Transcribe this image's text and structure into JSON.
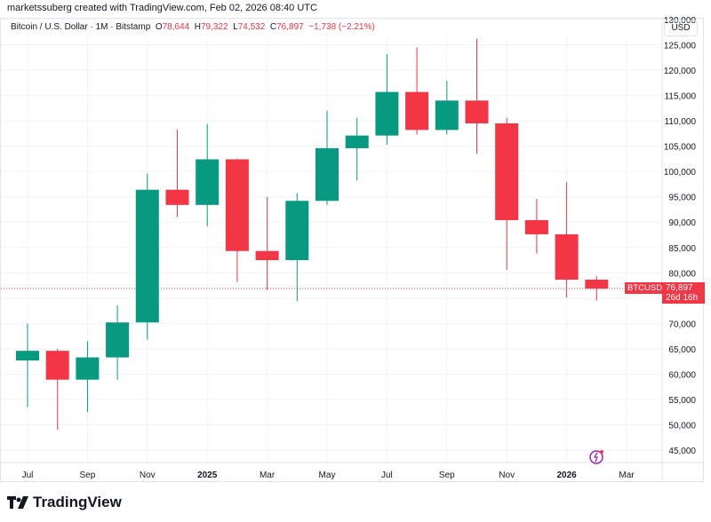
{
  "header": {
    "credit": "marketssuberg created with TradingView.com, Feb 02, 2026 08:40 UTC"
  },
  "legend": {
    "symbol": "Bitcoin / U.S. Dollar · 1M · Bitstamp",
    "o_label": "O",
    "o": "78,644",
    "h_label": "H",
    "h": "79,322",
    "l_label": "L",
    "l": "74,532",
    "c_label": "C",
    "c": "76,897",
    "change": "−1,738 (−2.21%)"
  },
  "currency": "USD",
  "price_tag": {
    "symbol": "BTCUSD",
    "price": "76,897",
    "countdown": "26d 16h"
  },
  "brand": "TradingView",
  "colors": {
    "up": "#089981",
    "down": "#f23645"
  },
  "chart_data": {
    "type": "candlestick",
    "title": "Bitcoin / U.S. Dollar · 1M · Bitstamp",
    "ylim": [
      45000,
      130000
    ],
    "y_ticks": [
      "130,000",
      "125,000",
      "120,000",
      "115,000",
      "110,000",
      "105,000",
      "100,000",
      "95,000",
      "90,000",
      "85,000",
      "80,000",
      "75,000",
      "70,000",
      "65,000",
      "60,000",
      "55,000",
      "50,000",
      "45,000"
    ],
    "x_ticks": [
      {
        "label": "Jul",
        "i": 0
      },
      {
        "label": "Sep",
        "i": 2
      },
      {
        "label": "Nov",
        "i": 4
      },
      {
        "label": "2025",
        "i": 6,
        "bold": true
      },
      {
        "label": "Mar",
        "i": 8
      },
      {
        "label": "May",
        "i": 10
      },
      {
        "label": "Jul",
        "i": 12
      },
      {
        "label": "Sep",
        "i": 14
      },
      {
        "label": "Nov",
        "i": 16
      },
      {
        "label": "2026",
        "i": 18,
        "bold": true
      },
      {
        "label": "Mar",
        "i": 20
      }
    ],
    "candles": [
      {
        "m": "2024-07",
        "o": 62700,
        "h": 70000,
        "l": 53500,
        "c": 64600
      },
      {
        "m": "2024-08",
        "o": 64600,
        "h": 65000,
        "l": 49000,
        "c": 58900
      },
      {
        "m": "2024-09",
        "o": 58900,
        "h": 66500,
        "l": 52500,
        "c": 63300
      },
      {
        "m": "2024-10",
        "o": 63300,
        "h": 73600,
        "l": 58900,
        "c": 70200
      },
      {
        "m": "2024-11",
        "o": 70200,
        "h": 99600,
        "l": 66800,
        "c": 96400
      },
      {
        "m": "2024-12",
        "o": 96400,
        "h": 108300,
        "l": 91000,
        "c": 93400
      },
      {
        "m": "2025-01",
        "o": 93400,
        "h": 109400,
        "l": 89200,
        "c": 102400
      },
      {
        "m": "2025-02",
        "o": 102400,
        "h": 102500,
        "l": 78200,
        "c": 84300
      },
      {
        "m": "2025-03",
        "o": 84300,
        "h": 95000,
        "l": 76600,
        "c": 82500
      },
      {
        "m": "2025-04",
        "o": 82500,
        "h": 95700,
        "l": 74400,
        "c": 94200
      },
      {
        "m": "2025-05",
        "o": 94200,
        "h": 112000,
        "l": 93400,
        "c": 104600
      },
      {
        "m": "2025-06",
        "o": 104600,
        "h": 110600,
        "l": 98200,
        "c": 107100
      },
      {
        "m": "2025-07",
        "o": 107100,
        "h": 123200,
        "l": 105300,
        "c": 115700
      },
      {
        "m": "2025-08",
        "o": 115700,
        "h": 124500,
        "l": 107300,
        "c": 108200
      },
      {
        "m": "2025-09",
        "o": 108200,
        "h": 117900,
        "l": 107300,
        "c": 114000
      },
      {
        "m": "2025-10",
        "o": 114000,
        "h": 126200,
        "l": 103500,
        "c": 109500
      },
      {
        "m": "2025-11",
        "o": 109500,
        "h": 110600,
        "l": 80600,
        "c": 90400
      },
      {
        "m": "2025-12",
        "o": 90400,
        "h": 94600,
        "l": 83800,
        "c": 87600
      },
      {
        "m": "2026-01",
        "o": 87600,
        "h": 97900,
        "l": 75100,
        "c": 78644
      },
      {
        "m": "2026-02",
        "o": 78644,
        "h": 79322,
        "l": 74532,
        "c": 76897
      }
    ],
    "last_price": 76897
  }
}
